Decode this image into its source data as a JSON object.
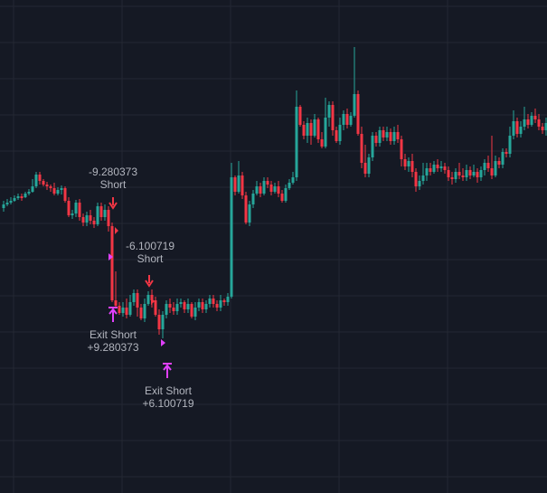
{
  "colors": {
    "background": "#151924",
    "grid": "#232733",
    "up": "#26a69a",
    "down": "#f23645",
    "exit": "#e040fb",
    "label": "#b2b5be"
  },
  "chart_data": {
    "type": "candlestick",
    "title": "",
    "xlabel": "",
    "ylabel": "",
    "grid": true,
    "ylim": [
      0,
      545
    ],
    "candles": [
      [
        4,
        230,
        226,
        234,
        222
      ],
      [
        8,
        226,
        224,
        228,
        220
      ],
      [
        12,
        224,
        222,
        226,
        218
      ],
      [
        16,
        222,
        219,
        223,
        216
      ],
      [
        20,
        219,
        217,
        221,
        214
      ],
      [
        24,
        217,
        218,
        222,
        214
      ],
      [
        28,
        218,
        214,
        219,
        212
      ],
      [
        32,
        214,
        212,
        216,
        209
      ],
      [
        36,
        212,
        206,
        213,
        198
      ],
      [
        40,
        206,
        193,
        208,
        190
      ],
      [
        44,
        193,
        200,
        204,
        190
      ],
      [
        48,
        200,
        204,
        206,
        198
      ],
      [
        52,
        204,
        206,
        210,
        201
      ],
      [
        56,
        206,
        208,
        212,
        204
      ],
      [
        60,
        208,
        214,
        216,
        202
      ],
      [
        64,
        214,
        210,
        216,
        207
      ],
      [
        68,
        210,
        208,
        215,
        205
      ],
      [
        72,
        208,
        222,
        224,
        206
      ],
      [
        76,
        222,
        238,
        240,
        218
      ],
      [
        80,
        238,
        236,
        242,
        232
      ],
      [
        84,
        236,
        224,
        240,
        221
      ],
      [
        88,
        224,
        240,
        244,
        220
      ],
      [
        92,
        240,
        246,
        250,
        236
      ],
      [
        96,
        246,
        238,
        250,
        234
      ],
      [
        100,
        238,
        244,
        248,
        232
      ],
      [
        104,
        244,
        248,
        252,
        240
      ],
      [
        108,
        248,
        228,
        250,
        224
      ],
      [
        112,
        228,
        240,
        244,
        224
      ],
      [
        116,
        240,
        232,
        244,
        226
      ],
      [
        120,
        232,
        250,
        256,
        228
      ],
      [
        124,
        250,
        332,
        334,
        246
      ],
      [
        128,
        332,
        338,
        340,
        300
      ],
      [
        132,
        338,
        346,
        348,
        334
      ],
      [
        136,
        346,
        340,
        350,
        334
      ],
      [
        140,
        340,
        348,
        352,
        330
      ],
      [
        144,
        348,
        334,
        350,
        326
      ],
      [
        148,
        334,
        324,
        338,
        320
      ],
      [
        152,
        324,
        340,
        350,
        320
      ],
      [
        156,
        340,
        352,
        354,
        336
      ],
      [
        160,
        352,
        336,
        356,
        330
      ],
      [
        164,
        336,
        326,
        338,
        322
      ],
      [
        168,
        326,
        332,
        340,
        320
      ],
      [
        172,
        332,
        348,
        350,
        328
      ],
      [
        176,
        348,
        364,
        370,
        342
      ],
      [
        180,
        364,
        348,
        374,
        344
      ],
      [
        184,
        348,
        336,
        352,
        332
      ],
      [
        188,
        336,
        340,
        346,
        330
      ],
      [
        192,
        340,
        344,
        348,
        334
      ],
      [
        196,
        344,
        336,
        348,
        330
      ],
      [
        200,
        336,
        334,
        340,
        330
      ],
      [
        204,
        334,
        342,
        346,
        332
      ],
      [
        208,
        342,
        336,
        346,
        330
      ],
      [
        212,
        336,
        350,
        352,
        334
      ],
      [
        216,
        350,
        340,
        354,
        334
      ],
      [
        220,
        340,
        334,
        344,
        330
      ],
      [
        224,
        334,
        342,
        346,
        330
      ],
      [
        228,
        342,
        336,
        346,
        332
      ],
      [
        232,
        336,
        330,
        340,
        326
      ],
      [
        236,
        330,
        336,
        340,
        326
      ],
      [
        240,
        336,
        340,
        344,
        332
      ],
      [
        244,
        340,
        332,
        344,
        326
      ],
      [
        248,
        332,
        334,
        338,
        330
      ],
      [
        252,
        334,
        328,
        338,
        324
      ],
      [
        256,
        328,
        196,
        330,
        180
      ],
      [
        260,
        196,
        212,
        216,
        194
      ],
      [
        264,
        212,
        194,
        214,
        178
      ],
      [
        268,
        194,
        216,
        220,
        190
      ],
      [
        272,
        216,
        246,
        248,
        212
      ],
      [
        276,
        246,
        226,
        250,
        222
      ],
      [
        280,
        226,
        214,
        230,
        210
      ],
      [
        284,
        214,
        206,
        216,
        200
      ],
      [
        288,
        206,
        214,
        218,
        202
      ],
      [
        292,
        214,
        200,
        216,
        196
      ],
      [
        296,
        200,
        204,
        208,
        196
      ],
      [
        300,
        204,
        212,
        216,
        200
      ],
      [
        304,
        212,
        206,
        214,
        202
      ],
      [
        308,
        206,
        214,
        218,
        200
      ],
      [
        312,
        214,
        222,
        224,
        210
      ],
      [
        316,
        222,
        208,
        224,
        204
      ],
      [
        320,
        208,
        202,
        210,
        198
      ],
      [
        324,
        202,
        196,
        204,
        190
      ],
      [
        328,
        196,
        118,
        200,
        100
      ],
      [
        332,
        118,
        138,
        140,
        116
      ],
      [
        336,
        138,
        150,
        154,
        134
      ],
      [
        340,
        150,
        136,
        158,
        130
      ],
      [
        344,
        136,
        150,
        160,
        132
      ],
      [
        348,
        150,
        132,
        152,
        126
      ],
      [
        352,
        132,
        154,
        158,
        130
      ],
      [
        356,
        154,
        162,
        164,
        146
      ],
      [
        360,
        162,
        130,
        164,
        108
      ],
      [
        364,
        130,
        116,
        140,
        112
      ],
      [
        368,
        116,
        144,
        150,
        112
      ],
      [
        372,
        144,
        156,
        158,
        140
      ],
      [
        376,
        156,
        138,
        160,
        130
      ],
      [
        380,
        138,
        126,
        144,
        122
      ],
      [
        384,
        126,
        138,
        142,
        120
      ],
      [
        388,
        138,
        128,
        140,
        124
      ],
      [
        392,
        128,
        104,
        130,
        52
      ],
      [
        396,
        104,
        148,
        150,
        100
      ],
      [
        400,
        148,
        180,
        186,
        140
      ],
      [
        404,
        180,
        192,
        196,
        160
      ],
      [
        408,
        192,
        174,
        196,
        170
      ],
      [
        412,
        174,
        150,
        178,
        146
      ],
      [
        416,
        150,
        158,
        162,
        146
      ],
      [
        420,
        158,
        144,
        162,
        140
      ],
      [
        424,
        144,
        152,
        156,
        140
      ],
      [
        428,
        152,
        146,
        156,
        140
      ],
      [
        432,
        146,
        156,
        160,
        142
      ],
      [
        436,
        156,
        146,
        160,
        140
      ],
      [
        440,
        146,
        154,
        158,
        138
      ],
      [
        444,
        154,
        176,
        184,
        150
      ],
      [
        448,
        176,
        184,
        188,
        170
      ],
      [
        452,
        184,
        178,
        190,
        174
      ],
      [
        456,
        178,
        190,
        196,
        170
      ],
      [
        460,
        190,
        206,
        212,
        186
      ],
      [
        464,
        206,
        200,
        210,
        194
      ],
      [
        468,
        200,
        194,
        204,
        180
      ],
      [
        472,
        194,
        186,
        200,
        180
      ],
      [
        476,
        186,
        190,
        194,
        180
      ],
      [
        480,
        190,
        182,
        192,
        178
      ],
      [
        484,
        182,
        186,
        190,
        176
      ],
      [
        488,
        186,
        184,
        190,
        178
      ],
      [
        492,
        184,
        188,
        192,
        180
      ],
      [
        496,
        188,
        196,
        200,
        184
      ],
      [
        500,
        196,
        198,
        204,
        190
      ],
      [
        504,
        198,
        190,
        202,
        186
      ],
      [
        508,
        190,
        194,
        198,
        180
      ],
      [
        512,
        194,
        196,
        200,
        186
      ],
      [
        516,
        196,
        188,
        200,
        182
      ],
      [
        520,
        188,
        194,
        198,
        184
      ],
      [
        524,
        194,
        190,
        196,
        182
      ],
      [
        528,
        190,
        196,
        202,
        186
      ],
      [
        532,
        196,
        188,
        200,
        184
      ],
      [
        536,
        188,
        180,
        194,
        176
      ],
      [
        540,
        180,
        186,
        190,
        172
      ],
      [
        544,
        186,
        194,
        198,
        150
      ],
      [
        548,
        194,
        178,
        196,
        172
      ],
      [
        552,
        178,
        182,
        186,
        174
      ],
      [
        556,
        182,
        168,
        186,
        164
      ],
      [
        560,
        168,
        170,
        174,
        164
      ],
      [
        564,
        170,
        150,
        174,
        140
      ],
      [
        568,
        150,
        134,
        154,
        122
      ],
      [
        572,
        134,
        148,
        152,
        130
      ],
      [
        576,
        148,
        140,
        152,
        134
      ],
      [
        580,
        140,
        132,
        144,
        118
      ],
      [
        584,
        132,
        138,
        142,
        126
      ],
      [
        588,
        138,
        128,
        140,
        124
      ],
      [
        592,
        128,
        132,
        136,
        120
      ],
      [
        596,
        132,
        140,
        144,
        126
      ],
      [
        600,
        140,
        144,
        148,
        136
      ],
      [
        604,
        144,
        136,
        150,
        130
      ]
    ],
    "signals": [
      {
        "type": "entry",
        "x": 125,
        "y": 228,
        "label_price": "-9.280373",
        "label_side": "Short"
      },
      {
        "type": "entry",
        "x": 165,
        "y": 314,
        "label_price": "-6.100719",
        "label_side": "Short"
      },
      {
        "type": "exit",
        "x": 125,
        "y": 348,
        "label_side": "Exit Short",
        "label_price": "+9.280373"
      },
      {
        "type": "exit",
        "x": 185,
        "y": 410,
        "label_side": "Exit Short",
        "label_price": "+6.100719"
      }
    ]
  }
}
